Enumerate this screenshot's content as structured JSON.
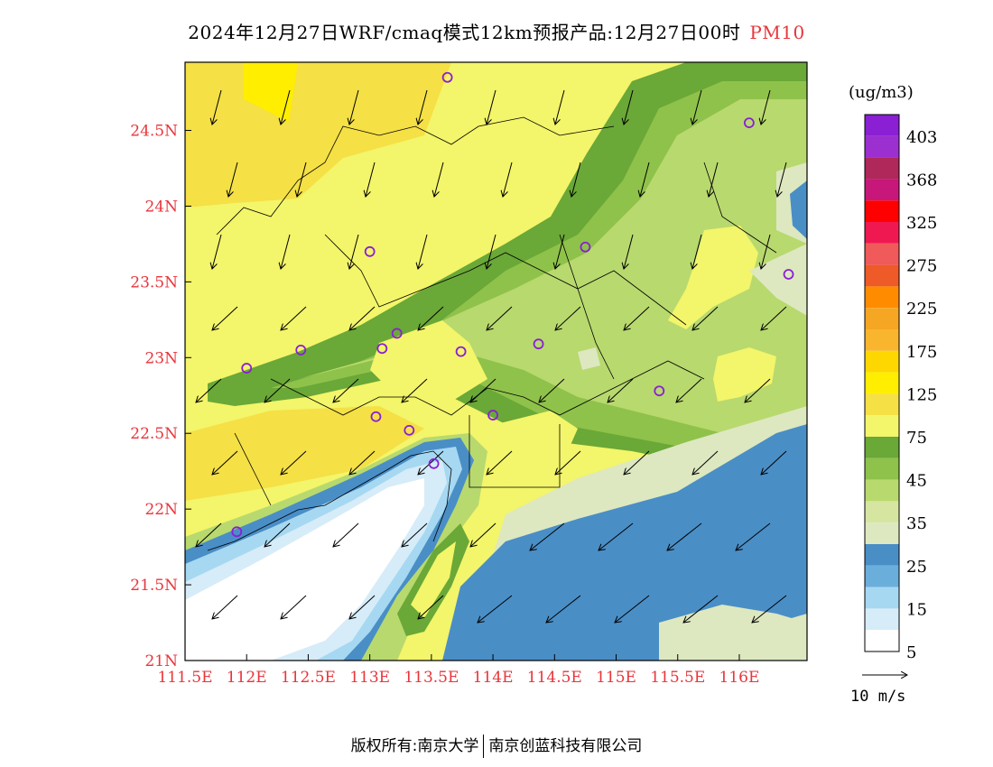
{
  "header": {
    "title": "2024年12月27日WRF/cmaq模式12km预报产品:12月27日00时",
    "pollutant": "PM10"
  },
  "axes": {
    "x_ticks": [
      "111.5E",
      "112E",
      "112.5E",
      "113E",
      "113.5E",
      "114E",
      "114.5E",
      "115E",
      "115.5E",
      "116E"
    ],
    "x_values": [
      111.5,
      112,
      112.5,
      113,
      113.5,
      114,
      114.5,
      115,
      115.5,
      116
    ],
    "y_ticks": [
      "21N",
      "21.5N",
      "22N",
      "22.5N",
      "23N",
      "23.5N",
      "24N",
      "24.5N"
    ],
    "y_values": [
      21,
      21.5,
      22,
      22.5,
      23,
      23.5,
      24,
      24.5
    ],
    "lon_range": [
      111.5,
      116.55
    ],
    "lat_range": [
      21.0,
      24.95
    ]
  },
  "legend": {
    "unit": "(ug/m3)",
    "labels": [
      "403",
      "368",
      "325",
      "275",
      "225",
      "175",
      "125",
      "75",
      "45",
      "35",
      "25",
      "15",
      "5"
    ],
    "colors": [
      "#8a1fd4",
      "#9b2fcf",
      "#b0275a",
      "#c8177a",
      "#ff0000",
      "#f01850",
      "#f05a5a",
      "#ee5a28",
      "#ff8c00",
      "#f5a623",
      "#f9b52e",
      "#ffd700",
      "#ffee00",
      "#f5e045",
      "#f3f56a",
      "#6aa837",
      "#8fc24a",
      "#b8d96e",
      "#d6e6a0",
      "#dde8c0",
      "#4a8ec6",
      "#6aaedc",
      "#a6d8f2",
      "#d6ecf8",
      "#ffffff"
    ]
  },
  "wind_reference": {
    "label": "10 m/s"
  },
  "stations": [
    {
      "lon": 113.63,
      "lat": 24.85
    },
    {
      "lon": 116.08,
      "lat": 24.55
    },
    {
      "lon": 113.0,
      "lat": 23.7
    },
    {
      "lon": 114.75,
      "lat": 23.73
    },
    {
      "lon": 116.4,
      "lat": 23.55
    },
    {
      "lon": 112.0,
      "lat": 22.93
    },
    {
      "lon": 112.44,
      "lat": 23.05
    },
    {
      "lon": 113.1,
      "lat": 23.06
    },
    {
      "lon": 113.22,
      "lat": 23.16
    },
    {
      "lon": 113.74,
      "lat": 23.04
    },
    {
      "lon": 114.37,
      "lat": 23.09
    },
    {
      "lon": 115.35,
      "lat": 22.78
    },
    {
      "lon": 113.05,
      "lat": 22.61
    },
    {
      "lon": 113.32,
      "lat": 22.52
    },
    {
      "lon": 114.0,
      "lat": 22.62
    },
    {
      "lon": 113.52,
      "lat": 22.3
    },
    {
      "lon": 111.92,
      "lat": 21.85
    }
  ],
  "footer": {
    "copyright": "版权所有:南京大学",
    "company": "南京创蓝科技有限公司"
  }
}
